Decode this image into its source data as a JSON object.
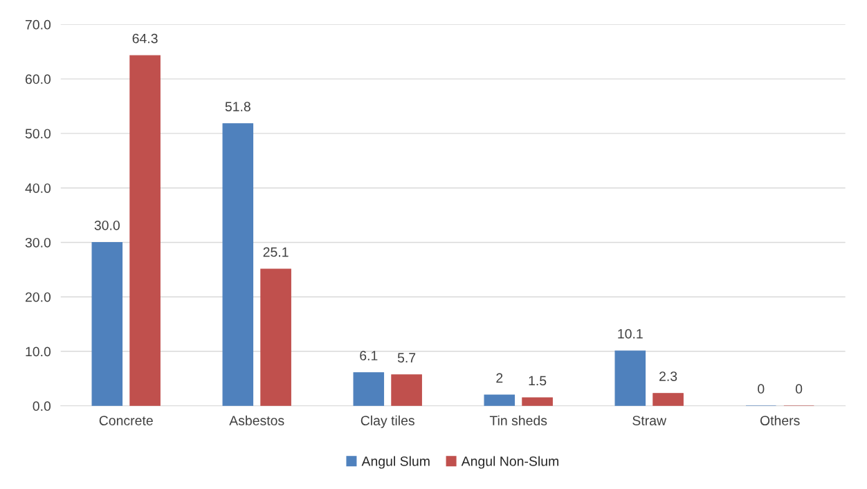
{
  "chart_data": {
    "type": "bar",
    "categories": [
      "Concrete",
      "Asbestos",
      "Clay tiles",
      "Tin sheds",
      "Straw",
      "Others"
    ],
    "series": [
      {
        "name": "Angul Slum",
        "color": "#4f81bd",
        "values": [
          30.0,
          51.8,
          6.1,
          2,
          10.1,
          0
        ],
        "value_labels": [
          "30.0",
          "51.8",
          "6.1",
          "2",
          "10.1",
          "0"
        ]
      },
      {
        "name": "Angul Non-Slum",
        "color": "#c0504d",
        "values": [
          64.3,
          25.1,
          5.7,
          1.5,
          2.3,
          0
        ],
        "value_labels": [
          "64.3",
          "25.1",
          "5.7",
          "1.5",
          "2.3",
          "0"
        ]
      }
    ],
    "ylim": [
      0,
      70
    ],
    "yticks": [
      {
        "value": 0,
        "label": "0.0"
      },
      {
        "value": 10,
        "label": "10.0"
      },
      {
        "value": 20,
        "label": "20.0"
      },
      {
        "value": 30,
        "label": "30.0"
      },
      {
        "value": 40,
        "label": "40.0"
      },
      {
        "value": 50,
        "label": "50.0"
      },
      {
        "value": 60,
        "label": "60.0"
      },
      {
        "value": 70,
        "label": "70.0"
      }
    ],
    "grid": "y",
    "legend": "bottom"
  }
}
